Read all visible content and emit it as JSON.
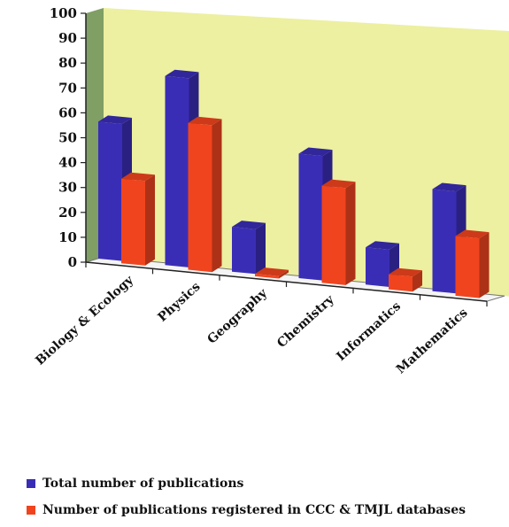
{
  "chart_data": {
    "type": "bar",
    "categories": [
      "Biology & Ecology",
      "Physics",
      "Geography",
      "Chemistry",
      "Informatics",
      "Mathematics"
    ],
    "series": [
      {
        "name": "Total number of publications",
        "values": [
          55,
          76,
          18,
          50,
          15,
          41
        ]
      },
      {
        "name": "Number of publications registered in CCC & TMJL databases",
        "values": [
          34,
          59,
          1,
          39,
          6,
          24
        ]
      }
    ],
    "ylim": [
      0,
      100
    ],
    "yticks": [
      "0",
      "10",
      "20",
      "30",
      "40",
      "50",
      "60",
      "70",
      "80",
      "90",
      "100"
    ],
    "grid": false,
    "legend_position": "bottom",
    "style": "3d-clustered-column",
    "colors": {
      "series1": "#3a2db5",
      "series2": "#f0441e",
      "back_wall": "#ecf0a0",
      "side_wall": "#7f9f64"
    }
  }
}
